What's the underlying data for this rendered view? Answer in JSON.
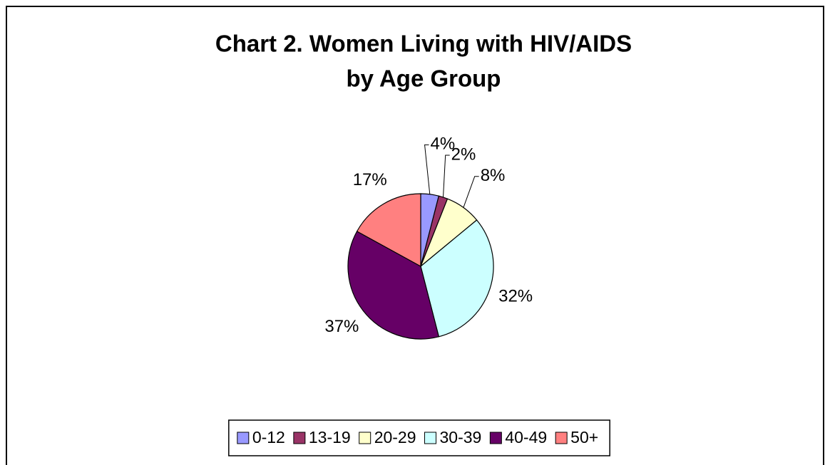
{
  "chart_data": {
    "type": "pie",
    "title": [
      "Chart 2. Women Living with HIV/AIDS",
      "by Age Group"
    ],
    "categories": [
      "0-12",
      "13-19",
      "20-29",
      "30-39",
      "40-49",
      "50+"
    ],
    "values": [
      4,
      2,
      8,
      32,
      37,
      17
    ],
    "value_labels": [
      "4%",
      "2%",
      "8%",
      "32%",
      "37%",
      "17%"
    ],
    "colors": [
      "#9999ff",
      "#993366",
      "#ffffcc",
      "#ccffff",
      "#660066",
      "#ff8080"
    ],
    "legend": "bottom"
  }
}
